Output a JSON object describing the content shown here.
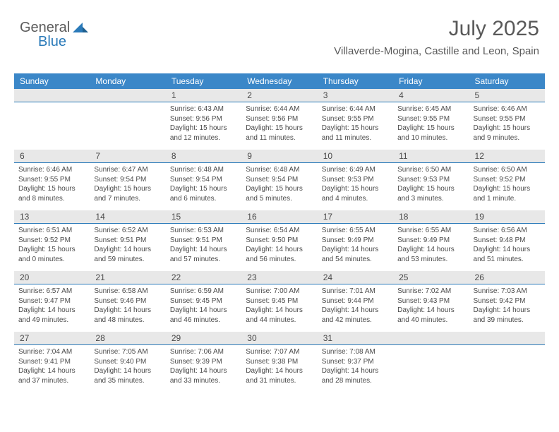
{
  "brand": {
    "word1": "General",
    "word2": "Blue",
    "color1": "#5b5b5b",
    "color2": "#2a7ab9"
  },
  "header": {
    "title": "July 2025",
    "location": "Villaverde-Mogina, Castille and Leon, Spain"
  },
  "colors": {
    "header_bg": "#3b87c8",
    "header_text": "#ffffff",
    "daynum_bg": "#e8e8e8",
    "daynum_border": "#2a7ab9",
    "text": "#4a4a4a"
  },
  "dayNames": [
    "Sunday",
    "Monday",
    "Tuesday",
    "Wednesday",
    "Thursday",
    "Friday",
    "Saturday"
  ],
  "weeks": [
    [
      {
        "n": "",
        "lines": []
      },
      {
        "n": "",
        "lines": []
      },
      {
        "n": "1",
        "lines": [
          "Sunrise: 6:43 AM",
          "Sunset: 9:56 PM",
          "Daylight: 15 hours",
          "and 12 minutes."
        ]
      },
      {
        "n": "2",
        "lines": [
          "Sunrise: 6:44 AM",
          "Sunset: 9:56 PM",
          "Daylight: 15 hours",
          "and 11 minutes."
        ]
      },
      {
        "n": "3",
        "lines": [
          "Sunrise: 6:44 AM",
          "Sunset: 9:55 PM",
          "Daylight: 15 hours",
          "and 11 minutes."
        ]
      },
      {
        "n": "4",
        "lines": [
          "Sunrise: 6:45 AM",
          "Sunset: 9:55 PM",
          "Daylight: 15 hours",
          "and 10 minutes."
        ]
      },
      {
        "n": "5",
        "lines": [
          "Sunrise: 6:46 AM",
          "Sunset: 9:55 PM",
          "Daylight: 15 hours",
          "and 9 minutes."
        ]
      }
    ],
    [
      {
        "n": "6",
        "lines": [
          "Sunrise: 6:46 AM",
          "Sunset: 9:55 PM",
          "Daylight: 15 hours",
          "and 8 minutes."
        ]
      },
      {
        "n": "7",
        "lines": [
          "Sunrise: 6:47 AM",
          "Sunset: 9:54 PM",
          "Daylight: 15 hours",
          "and 7 minutes."
        ]
      },
      {
        "n": "8",
        "lines": [
          "Sunrise: 6:48 AM",
          "Sunset: 9:54 PM",
          "Daylight: 15 hours",
          "and 6 minutes."
        ]
      },
      {
        "n": "9",
        "lines": [
          "Sunrise: 6:48 AM",
          "Sunset: 9:54 PM",
          "Daylight: 15 hours",
          "and 5 minutes."
        ]
      },
      {
        "n": "10",
        "lines": [
          "Sunrise: 6:49 AM",
          "Sunset: 9:53 PM",
          "Daylight: 15 hours",
          "and 4 minutes."
        ]
      },
      {
        "n": "11",
        "lines": [
          "Sunrise: 6:50 AM",
          "Sunset: 9:53 PM",
          "Daylight: 15 hours",
          "and 3 minutes."
        ]
      },
      {
        "n": "12",
        "lines": [
          "Sunrise: 6:50 AM",
          "Sunset: 9:52 PM",
          "Daylight: 15 hours",
          "and 1 minute."
        ]
      }
    ],
    [
      {
        "n": "13",
        "lines": [
          "Sunrise: 6:51 AM",
          "Sunset: 9:52 PM",
          "Daylight: 15 hours",
          "and 0 minutes."
        ]
      },
      {
        "n": "14",
        "lines": [
          "Sunrise: 6:52 AM",
          "Sunset: 9:51 PM",
          "Daylight: 14 hours",
          "and 59 minutes."
        ]
      },
      {
        "n": "15",
        "lines": [
          "Sunrise: 6:53 AM",
          "Sunset: 9:51 PM",
          "Daylight: 14 hours",
          "and 57 minutes."
        ]
      },
      {
        "n": "16",
        "lines": [
          "Sunrise: 6:54 AM",
          "Sunset: 9:50 PM",
          "Daylight: 14 hours",
          "and 56 minutes."
        ]
      },
      {
        "n": "17",
        "lines": [
          "Sunrise: 6:55 AM",
          "Sunset: 9:49 PM",
          "Daylight: 14 hours",
          "and 54 minutes."
        ]
      },
      {
        "n": "18",
        "lines": [
          "Sunrise: 6:55 AM",
          "Sunset: 9:49 PM",
          "Daylight: 14 hours",
          "and 53 minutes."
        ]
      },
      {
        "n": "19",
        "lines": [
          "Sunrise: 6:56 AM",
          "Sunset: 9:48 PM",
          "Daylight: 14 hours",
          "and 51 minutes."
        ]
      }
    ],
    [
      {
        "n": "20",
        "lines": [
          "Sunrise: 6:57 AM",
          "Sunset: 9:47 PM",
          "Daylight: 14 hours",
          "and 49 minutes."
        ]
      },
      {
        "n": "21",
        "lines": [
          "Sunrise: 6:58 AM",
          "Sunset: 9:46 PM",
          "Daylight: 14 hours",
          "and 48 minutes."
        ]
      },
      {
        "n": "22",
        "lines": [
          "Sunrise: 6:59 AM",
          "Sunset: 9:45 PM",
          "Daylight: 14 hours",
          "and 46 minutes."
        ]
      },
      {
        "n": "23",
        "lines": [
          "Sunrise: 7:00 AM",
          "Sunset: 9:45 PM",
          "Daylight: 14 hours",
          "and 44 minutes."
        ]
      },
      {
        "n": "24",
        "lines": [
          "Sunrise: 7:01 AM",
          "Sunset: 9:44 PM",
          "Daylight: 14 hours",
          "and 42 minutes."
        ]
      },
      {
        "n": "25",
        "lines": [
          "Sunrise: 7:02 AM",
          "Sunset: 9:43 PM",
          "Daylight: 14 hours",
          "and 40 minutes."
        ]
      },
      {
        "n": "26",
        "lines": [
          "Sunrise: 7:03 AM",
          "Sunset: 9:42 PM",
          "Daylight: 14 hours",
          "and 39 minutes."
        ]
      }
    ],
    [
      {
        "n": "27",
        "lines": [
          "Sunrise: 7:04 AM",
          "Sunset: 9:41 PM",
          "Daylight: 14 hours",
          "and 37 minutes."
        ]
      },
      {
        "n": "28",
        "lines": [
          "Sunrise: 7:05 AM",
          "Sunset: 9:40 PM",
          "Daylight: 14 hours",
          "and 35 minutes."
        ]
      },
      {
        "n": "29",
        "lines": [
          "Sunrise: 7:06 AM",
          "Sunset: 9:39 PM",
          "Daylight: 14 hours",
          "and 33 minutes."
        ]
      },
      {
        "n": "30",
        "lines": [
          "Sunrise: 7:07 AM",
          "Sunset: 9:38 PM",
          "Daylight: 14 hours",
          "and 31 minutes."
        ]
      },
      {
        "n": "31",
        "lines": [
          "Sunrise: 7:08 AM",
          "Sunset: 9:37 PM",
          "Daylight: 14 hours",
          "and 28 minutes."
        ]
      },
      {
        "n": "",
        "lines": []
      },
      {
        "n": "",
        "lines": []
      }
    ]
  ]
}
